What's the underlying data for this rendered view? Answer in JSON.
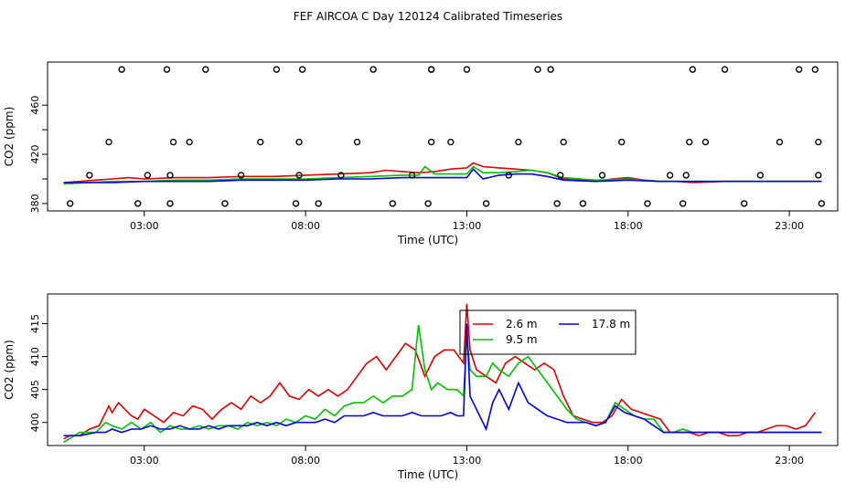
{
  "title": "FEF AIRCOA C  Day 120124  Calibrated Timeseries",
  "colors": {
    "red": "#e00000",
    "green": "#00c000",
    "blue": "#0000dd",
    "axis": "#000000"
  },
  "chart_data": [
    {
      "type": "line",
      "id": "top",
      "xlabel": "Time (UTC)",
      "ylabel": "CO2 (ppm)",
      "xlim": [
        0,
        24.5
      ],
      "ylim": [
        374,
        495
      ],
      "xticks": [
        3,
        8,
        13,
        18,
        23
      ],
      "xtick_labels": [
        "03:00",
        "08:00",
        "13:00",
        "18:00",
        "23:00"
      ],
      "yticks": [
        380,
        400,
        420,
        440,
        460
      ],
      "ytick_labels": [
        "380",
        "",
        "420",
        "",
        "460"
      ],
      "series": [
        {
          "name": "2.6 m",
          "color": "red",
          "x": [
            0.5,
            1.5,
            2,
            2.5,
            3,
            4,
            5,
            6,
            7,
            8,
            9,
            10,
            10.5,
            11,
            11.5,
            12,
            12.5,
            13,
            13.2,
            13.5,
            14,
            14.5,
            15,
            15.5,
            16,
            16.5,
            17,
            17.5,
            18,
            18.5,
            19,
            19.5,
            20,
            21,
            22,
            23,
            24
          ],
          "y": [
            397,
            399,
            400,
            401,
            400,
            401,
            401,
            402,
            402,
            403,
            404,
            405,
            407,
            406,
            405,
            406,
            408,
            409,
            413,
            410,
            409,
            408,
            407,
            405,
            400,
            399,
            398,
            400,
            401,
            399,
            398,
            398,
            397,
            398,
            398,
            398,
            398
          ]
        },
        {
          "name": "9.5 m",
          "color": "green",
          "x": [
            0.5,
            2,
            3,
            4,
            5,
            6,
            7,
            8,
            9,
            10,
            11,
            11.5,
            11.7,
            12,
            12.5,
            13,
            13.2,
            13.5,
            14,
            14.5,
            15,
            15.5,
            16,
            17,
            18,
            19,
            20,
            21,
            22,
            23,
            24
          ],
          "y": [
            396,
            398,
            398,
            399,
            399,
            400,
            400,
            400,
            401,
            402,
            403,
            403,
            410,
            404,
            404,
            404,
            410,
            405,
            405,
            406,
            407,
            405,
            401,
            399,
            400,
            398,
            398,
            398,
            398,
            398,
            398
          ]
        },
        {
          "name": "17.8 m",
          "color": "blue",
          "x": [
            0.5,
            2,
            3,
            4,
            5,
            6,
            7,
            8,
            9,
            10,
            11,
            12,
            12.5,
            13,
            13.2,
            13.5,
            14,
            14.5,
            15,
            15.5,
            16,
            17,
            18,
            19,
            20,
            21,
            22,
            23,
            24
          ],
          "y": [
            397,
            397,
            398,
            398,
            398,
            399,
            399,
            399,
            400,
            400,
            401,
            401,
            401,
            401,
            408,
            400,
            403,
            404,
            404,
            402,
            399,
            398,
            399,
            398,
            398,
            398,
            398,
            398,
            398
          ]
        }
      ],
      "markers": {
        "symbol": "circle",
        "x": [
          0.7,
          1.3,
          1.9,
          2.3,
          2.8,
          3.1,
          3.7,
          3.8,
          3.8,
          3.9,
          4.4,
          4.9,
          5.5,
          6.0,
          6.6,
          7.1,
          7.7,
          7.8,
          7.8,
          7.9,
          8.4,
          9.1,
          9.6,
          10.1,
          10.7,
          11.3,
          11.8,
          11.9,
          11.9,
          11.9,
          12.5,
          13.0,
          13.6,
          14.3,
          14.6,
          15.2,
          15.6,
          15.8,
          15.9,
          16.0,
          16.6,
          17.2,
          17.8,
          18.6,
          19.3,
          19.7,
          19.8,
          19.9,
          20.0,
          20.4,
          21.0,
          21.6,
          22.1,
          22.7,
          23.3,
          23.8,
          23.9,
          23.9,
          24.0
        ],
        "y": [
          380,
          403,
          430,
          489,
          380,
          403,
          489,
          380,
          403,
          430,
          430,
          489,
          380,
          403,
          430,
          489,
          380,
          403,
          430,
          489,
          380,
          403,
          430,
          489,
          380,
          403,
          380,
          430,
          489,
          489,
          430,
          489,
          380,
          403,
          430,
          489,
          489,
          380,
          403,
          430,
          380,
          403,
          430,
          380,
          403,
          380,
          403,
          430,
          489,
          430,
          489,
          380,
          403,
          430,
          489,
          489,
          430,
          403,
          380
        ]
      }
    },
    {
      "type": "line",
      "id": "bottom",
      "xlabel": "Time (UTC)",
      "ylabel": "CO2 (ppm)",
      "xlim": [
        0,
        24.5
      ],
      "ylim": [
        396.5,
        419.5
      ],
      "xticks": [
        3,
        8,
        13,
        18,
        23
      ],
      "xtick_labels": [
        "03:00",
        "08:00",
        "13:00",
        "18:00",
        "23:00"
      ],
      "yticks": [
        400,
        405,
        410,
        415
      ],
      "ytick_labels": [
        "400",
        "405",
        "410",
        "415"
      ],
      "legend": {
        "position": "top-center",
        "entries": [
          {
            "label": "2.6 m",
            "color": "red"
          },
          {
            "label": "17.8 m",
            "color": "blue"
          },
          {
            "label": "9.5 m",
            "color": "green"
          }
        ]
      },
      "series": [
        {
          "name": "2.6 m",
          "color": "red",
          "x": [
            0.5,
            0.7,
            1.0,
            1.3,
            1.6,
            1.9,
            2.0,
            2.2,
            2.4,
            2.6,
            2.8,
            3.0,
            3.3,
            3.6,
            3.9,
            4.2,
            4.5,
            4.8,
            5.1,
            5.4,
            5.7,
            6.0,
            6.3,
            6.6,
            6.9,
            7.2,
            7.5,
            7.8,
            8.1,
            8.4,
            8.7,
            9.0,
            9.3,
            9.6,
            9.9,
            10.2,
            10.5,
            10.8,
            11.1,
            11.4,
            11.7,
            12.0,
            12.3,
            12.6,
            12.9,
            13.0,
            13.1,
            13.3,
            13.6,
            13.9,
            14.2,
            14.5,
            14.8,
            15.1,
            15.4,
            15.7,
            16.0,
            16.3,
            16.6,
            16.9,
            17.2,
            17.5,
            17.8,
            18.1,
            18.4,
            18.7,
            19.0,
            19.3,
            19.6,
            19.9,
            20.2,
            20.5,
            20.8,
            21.1,
            21.4,
            21.7,
            22.0,
            22.3,
            22.6,
            22.9,
            23.2,
            23.5,
            23.8
          ],
          "y": [
            397.5,
            398,
            398,
            399,
            399.5,
            402.5,
            401.5,
            403,
            402,
            401,
            400.5,
            402,
            401,
            400,
            401.5,
            401,
            402.5,
            402,
            400.5,
            402,
            403,
            402,
            404,
            403,
            404,
            406,
            404,
            403.5,
            405,
            404,
            405,
            404,
            405,
            407,
            409,
            410,
            408,
            410,
            412,
            411,
            407,
            410,
            411,
            411,
            409,
            418,
            411,
            408,
            407,
            406,
            409,
            410,
            409,
            408,
            409,
            408,
            404,
            401,
            400.5,
            400,
            400,
            401,
            403.5,
            402,
            401.5,
            401,
            400.5,
            398.5,
            398.5,
            398.5,
            398,
            398.5,
            398.5,
            398,
            398,
            398.5,
            398.5,
            399,
            399.5,
            399.5,
            399,
            399.5,
            401.5
          ]
        },
        {
          "name": "9.5 m",
          "color": "green",
          "x": [
            0.5,
            1.0,
            1.5,
            1.8,
            2.0,
            2.3,
            2.6,
            2.9,
            3.2,
            3.5,
            3.8,
            4.1,
            4.4,
            4.7,
            5.0,
            5.3,
            5.6,
            5.9,
            6.2,
            6.5,
            6.8,
            7.1,
            7.4,
            7.7,
            8.0,
            8.3,
            8.6,
            8.9,
            9.2,
            9.5,
            9.8,
            10.1,
            10.4,
            10.7,
            11.0,
            11.3,
            11.5,
            11.7,
            11.9,
            12.1,
            12.4,
            12.7,
            12.9,
            13.0,
            13.1,
            13.3,
            13.6,
            13.8,
            14.0,
            14.3,
            14.6,
            14.9,
            15.2,
            15.5,
            15.8,
            16.1,
            16.4,
            16.7,
            17.0,
            17.3,
            17.6,
            17.9,
            18.2,
            18.5,
            18.8,
            19.1,
            19.4,
            19.7,
            20.0,
            20.5,
            21.0,
            21.5,
            22.0,
            22.5,
            23.0,
            23.5,
            24.0
          ],
          "y": [
            397,
            398.5,
            398.5,
            400,
            399.5,
            399,
            400,
            399,
            400,
            398.5,
            399.5,
            399,
            399,
            399.5,
            399,
            399.5,
            399.5,
            399,
            400,
            399.5,
            400,
            399.5,
            400.5,
            400,
            401,
            400.5,
            402,
            401,
            402.5,
            403,
            403,
            404,
            403,
            404,
            404,
            405,
            414.8,
            408,
            405,
            406,
            405,
            405,
            404,
            413,
            408,
            407,
            407,
            409,
            408,
            407,
            409,
            410,
            408,
            406,
            404,
            402,
            400.5,
            400,
            399.5,
            400,
            403,
            402,
            401,
            400.5,
            400.5,
            398.5,
            398.5,
            399,
            398.5,
            398.5,
            398.5,
            398.5,
            398.5,
            398.5,
            398.5,
            398.5,
            398.5
          ]
        },
        {
          "name": "17.8 m",
          "color": "blue",
          "x": [
            0.5,
            1.0,
            1.5,
            1.8,
            2.0,
            2.3,
            2.6,
            2.9,
            3.2,
            3.5,
            3.8,
            4.1,
            4.4,
            4.7,
            5.0,
            5.3,
            5.6,
            5.9,
            6.2,
            6.5,
            6.8,
            7.1,
            7.4,
            7.7,
            8.0,
            8.3,
            8.6,
            8.9,
            9.2,
            9.5,
            9.8,
            10.1,
            10.4,
            10.7,
            11.0,
            11.3,
            11.6,
            11.9,
            12.2,
            12.5,
            12.7,
            12.9,
            13.0,
            13.1,
            13.3,
            13.6,
            13.8,
            14.0,
            14.3,
            14.6,
            14.9,
            15.2,
            15.5,
            15.8,
            16.1,
            16.4,
            16.7,
            17.0,
            17.3,
            17.6,
            17.9,
            18.2,
            18.5,
            18.8,
            19.1,
            19.4,
            19.7,
            20.0,
            20.5,
            21.0,
            21.5,
            22.0,
            22.5,
            23.0,
            23.5,
            24.0
          ],
          "y": [
            398,
            398,
            398.5,
            398.5,
            399,
            398.5,
            399,
            399,
            399.5,
            399,
            399,
            399.5,
            399,
            399,
            399.5,
            399,
            399.5,
            399.5,
            399.5,
            400,
            399.5,
            400,
            399.5,
            400,
            400,
            400,
            400.5,
            400,
            401,
            401,
            401,
            401.5,
            401,
            401,
            401,
            401.5,
            401,
            401,
            401,
            401.5,
            401,
            401,
            415,
            404,
            402,
            399,
            403,
            405,
            402,
            406,
            403,
            402,
            401,
            400.5,
            400,
            400,
            400,
            399.5,
            400,
            402.5,
            401.5,
            401,
            400.5,
            399.5,
            398.5,
            398.5,
            398.5,
            398.5,
            398.5,
            398.5,
            398.5,
            398.5,
            398.5,
            398.5,
            398.5,
            398.5
          ]
        }
      ]
    }
  ]
}
